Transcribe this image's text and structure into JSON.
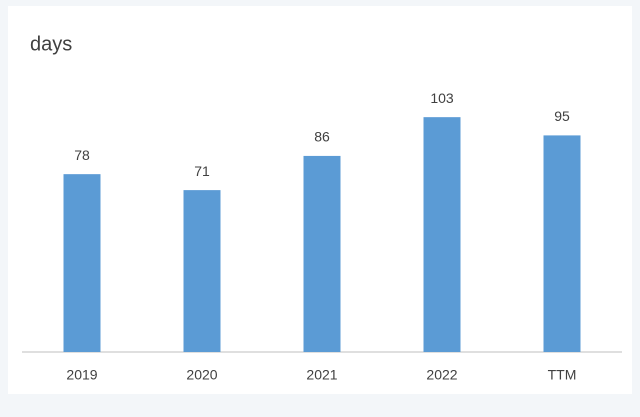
{
  "chart_data": {
    "type": "bar",
    "title": "days",
    "categories": [
      "2019",
      "2020",
      "2021",
      "2022",
      "TTM"
    ],
    "values": [
      78,
      71,
      86,
      103,
      95
    ],
    "color": "#5b9bd5"
  }
}
